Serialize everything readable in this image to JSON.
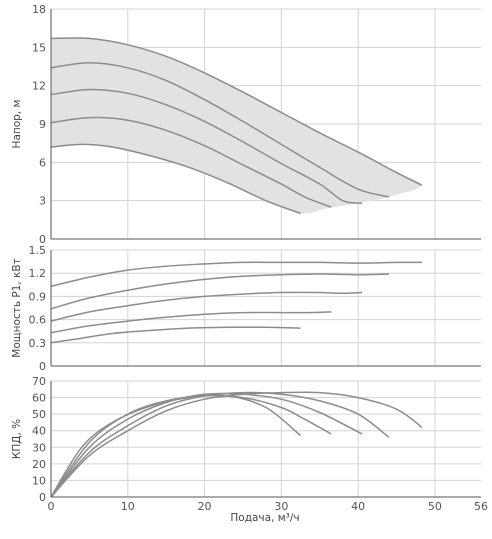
{
  "colors": {
    "curve": "#8c8c8c",
    "envelope_fill": "#e2e2e2",
    "grid": "#d3d3d3",
    "axis": "#555555",
    "text": "#555555"
  },
  "chart_data": [
    {
      "type": "line",
      "panel": "head",
      "ylabel": "Напор, м",
      "xlim": [
        0,
        56
      ],
      "ylim": [
        0,
        18
      ],
      "yticks": [
        0,
        3,
        6,
        9,
        12,
        15,
        18
      ],
      "envelope": {
        "fill": true,
        "points": [
          [
            0,
            15.7
          ],
          [
            5,
            15.7
          ],
          [
            10,
            15.2
          ],
          [
            15,
            14.3
          ],
          [
            20,
            13.0
          ],
          [
            25,
            11.5
          ],
          [
            30,
            9.9
          ],
          [
            35,
            8.3
          ],
          [
            40,
            6.8
          ],
          [
            45,
            5.2
          ],
          [
            48.3,
            4.2
          ],
          [
            44,
            3.3
          ],
          [
            40,
            2.8
          ],
          [
            36,
            2.4
          ],
          [
            32.5,
            2.0
          ],
          [
            28,
            3.0
          ],
          [
            23,
            4.4
          ],
          [
            18,
            5.6
          ],
          [
            13,
            6.5
          ],
          [
            8,
            7.2
          ],
          [
            4,
            7.4
          ],
          [
            0,
            7.2
          ]
        ]
      },
      "series": [
        {
          "values": [
            [
              0,
              15.7
            ],
            [
              5,
              15.7
            ],
            [
              10,
              15.2
            ],
            [
              15,
              14.3
            ],
            [
              20,
              13.0
            ],
            [
              25,
              11.5
            ],
            [
              30,
              9.9
            ],
            [
              35,
              8.3
            ],
            [
              40,
              6.8
            ],
            [
              45,
              5.2
            ],
            [
              48.3,
              4.2
            ]
          ]
        },
        {
          "values": [
            [
              0,
              13.4
            ],
            [
              5,
              13.8
            ],
            [
              10,
              13.4
            ],
            [
              15,
              12.4
            ],
            [
              20,
              10.9
            ],
            [
              25,
              9.2
            ],
            [
              30,
              7.4
            ],
            [
              35,
              5.6
            ],
            [
              40,
              3.9
            ],
            [
              44,
              3.3
            ]
          ]
        },
        {
          "values": [
            [
              0,
              11.3
            ],
            [
              5,
              11.7
            ],
            [
              10,
              11.4
            ],
            [
              15,
              10.5
            ],
            [
              20,
              9.2
            ],
            [
              25,
              7.6
            ],
            [
              30,
              5.9
            ],
            [
              35,
              4.3
            ],
            [
              38,
              3.0
            ],
            [
              40.5,
              2.8
            ]
          ]
        },
        {
          "values": [
            [
              0,
              9.1
            ],
            [
              5,
              9.5
            ],
            [
              10,
              9.3
            ],
            [
              15,
              8.5
            ],
            [
              20,
              7.3
            ],
            [
              25,
              5.8
            ],
            [
              30,
              4.3
            ],
            [
              33,
              3.3
            ],
            [
              36.5,
              2.5
            ]
          ]
        },
        {
          "values": [
            [
              0,
              7.2
            ],
            [
              4,
              7.4
            ],
            [
              8,
              7.2
            ],
            [
              13,
              6.5
            ],
            [
              18,
              5.6
            ],
            [
              23,
              4.4
            ],
            [
              28,
              3.0
            ],
            [
              32.5,
              2.0
            ]
          ]
        }
      ]
    },
    {
      "type": "line",
      "panel": "power",
      "ylabel": "Мощность P1, кВт",
      "xlim": [
        0,
        56
      ],
      "ylim": [
        0,
        1.5
      ],
      "yticks": [
        0,
        0.3,
        0.6,
        0.9,
        1.2,
        1.5
      ],
      "series": [
        {
          "values": [
            [
              0,
              1.03
            ],
            [
              5,
              1.15
            ],
            [
              10,
              1.24
            ],
            [
              15,
              1.29
            ],
            [
              20,
              1.32
            ],
            [
              25,
              1.34
            ],
            [
              30,
              1.34
            ],
            [
              35,
              1.34
            ],
            [
              40,
              1.33
            ],
            [
              45,
              1.34
            ],
            [
              48.3,
              1.34
            ]
          ]
        },
        {
          "values": [
            [
              0,
              0.74
            ],
            [
              5,
              0.88
            ],
            [
              10,
              0.98
            ],
            [
              15,
              1.06
            ],
            [
              20,
              1.12
            ],
            [
              25,
              1.16
            ],
            [
              30,
              1.18
            ],
            [
              35,
              1.19
            ],
            [
              40,
              1.18
            ],
            [
              44,
              1.19
            ]
          ]
        },
        {
          "values": [
            [
              0,
              0.58
            ],
            [
              5,
              0.7
            ],
            [
              10,
              0.78
            ],
            [
              15,
              0.85
            ],
            [
              20,
              0.9
            ],
            [
              25,
              0.93
            ],
            [
              30,
              0.95
            ],
            [
              35,
              0.95
            ],
            [
              38,
              0.94
            ],
            [
              40.5,
              0.95
            ]
          ]
        },
        {
          "values": [
            [
              0,
              0.43
            ],
            [
              5,
              0.52
            ],
            [
              10,
              0.58
            ],
            [
              15,
              0.63
            ],
            [
              20,
              0.67
            ],
            [
              25,
              0.69
            ],
            [
              30,
              0.69
            ],
            [
              33,
              0.69
            ],
            [
              36.5,
              0.7
            ]
          ]
        },
        {
          "values": [
            [
              0,
              0.3
            ],
            [
              4,
              0.36
            ],
            [
              8,
              0.42
            ],
            [
              13,
              0.46
            ],
            [
              18,
              0.49
            ],
            [
              23,
              0.5
            ],
            [
              28,
              0.5
            ],
            [
              32.5,
              0.49
            ]
          ]
        }
      ]
    },
    {
      "type": "line",
      "panel": "efficiency",
      "xlabel": "Подача, м³/ч",
      "ylabel": "КПД, %",
      "xlim": [
        0,
        56
      ],
      "ylim": [
        0,
        70
      ],
      "xticks": [
        0,
        10,
        20,
        30,
        40,
        50,
        56
      ],
      "yticks": [
        0,
        10,
        20,
        30,
        40,
        50,
        60,
        70
      ],
      "series": [
        {
          "values": [
            [
              0,
              0
            ],
            [
              5,
              25
            ],
            [
              10,
              40
            ],
            [
              15,
              52
            ],
            [
              20,
              59
            ],
            [
              25,
              62
            ],
            [
              30,
              63
            ],
            [
              35,
              63
            ],
            [
              40,
              60
            ],
            [
              45,
              53
            ],
            [
              48.3,
              42
            ]
          ]
        },
        {
          "values": [
            [
              0,
              0
            ],
            [
              5,
              27
            ],
            [
              10,
              43
            ],
            [
              15,
              55
            ],
            [
              20,
              61
            ],
            [
              25,
              63
            ],
            [
              30,
              62
            ],
            [
              35,
              58
            ],
            [
              40,
              50
            ],
            [
              44,
              36
            ]
          ]
        },
        {
          "values": [
            [
              0,
              0
            ],
            [
              5,
              30
            ],
            [
              10,
              47
            ],
            [
              15,
              57
            ],
            [
              20,
              62
            ],
            [
              25,
              62
            ],
            [
              30,
              59
            ],
            [
              35,
              51
            ],
            [
              40.5,
              38
            ]
          ]
        },
        {
          "values": [
            [
              0,
              0
            ],
            [
              5,
              33
            ],
            [
              10,
              50
            ],
            [
              15,
              58
            ],
            [
              20,
              61
            ],
            [
              25,
              60
            ],
            [
              30,
              54
            ],
            [
              33,
              47
            ],
            [
              36.5,
              38
            ]
          ]
        },
        {
          "values": [
            [
              0,
              0
            ],
            [
              4,
              30
            ],
            [
              8,
              45
            ],
            [
              13,
              55
            ],
            [
              18,
              60
            ],
            [
              23,
              61
            ],
            [
              28,
              54
            ],
            [
              32.5,
              37
            ]
          ]
        }
      ]
    }
  ]
}
